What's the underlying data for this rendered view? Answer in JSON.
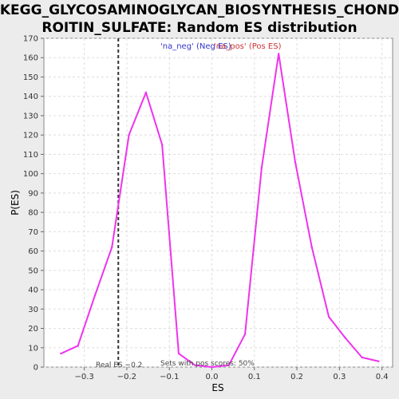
{
  "chart_data": {
    "type": "line",
    "title": "KEGG_GLYCOSAMINOGLYCAN_BIOSYNTHESIS_CHONDROITIN_SULFATE: Random ES distribution",
    "title_lines": [
      "KEGG_GLYCOSAMINOGLYCAN_BIOSYNTHESIS_CHOND",
      "ROITIN_SULFATE: Random ES distribution"
    ],
    "xlabel": "ES",
    "ylabel": "P(ES)",
    "xlim": [
      -0.395,
      0.425
    ],
    "ylim": [
      0,
      170
    ],
    "x_ticks": [
      -0.3,
      -0.2,
      -0.1,
      0.0,
      0.1,
      0.2,
      0.3,
      0.4
    ],
    "x_tick_labels": [
      "−0.3",
      "−0.2",
      "−0.1",
      "0.0",
      "0.1",
      "0.2",
      "0.3",
      "0.4"
    ],
    "y_ticks": [
      0,
      10,
      20,
      30,
      40,
      50,
      60,
      70,
      80,
      90,
      100,
      110,
      120,
      130,
      140,
      150,
      160,
      170
    ],
    "y_tick_labels": [
      "0",
      "10",
      "20",
      "30",
      "40",
      "50",
      "60",
      "70",
      "80",
      "90",
      "100",
      "110",
      "120",
      "130",
      "140",
      "150",
      "160",
      "170"
    ],
    "grid": true,
    "series": [
      {
        "name": "",
        "color": "#ee33ee",
        "x": [
          -0.355,
          -0.315,
          -0.275,
          -0.235,
          -0.195,
          -0.155,
          -0.117,
          -0.078,
          -0.04,
          0.0,
          0.04,
          0.078,
          0.117,
          0.157,
          0.196,
          0.235,
          0.275,
          0.314,
          0.353,
          0.392
        ],
        "y": [
          7,
          11,
          37,
          62,
          120,
          142,
          115,
          7,
          1,
          0,
          1,
          17,
          103,
          162,
          106,
          62,
          26,
          15,
          5,
          3
        ]
      }
    ],
    "legend": [
      {
        "label": "'na_neg' (Neg ES)",
        "color": "#3333cc"
      },
      {
        "label": "'na_pos' (Pos ES)",
        "color": "#cc3333"
      }
    ],
    "legend_placement": "top-center",
    "real_es": {
      "value": -0.22,
      "label": "Real ES −0.2",
      "color": "#333333"
    },
    "annotation": "Sets with pos scores: 50%"
  }
}
